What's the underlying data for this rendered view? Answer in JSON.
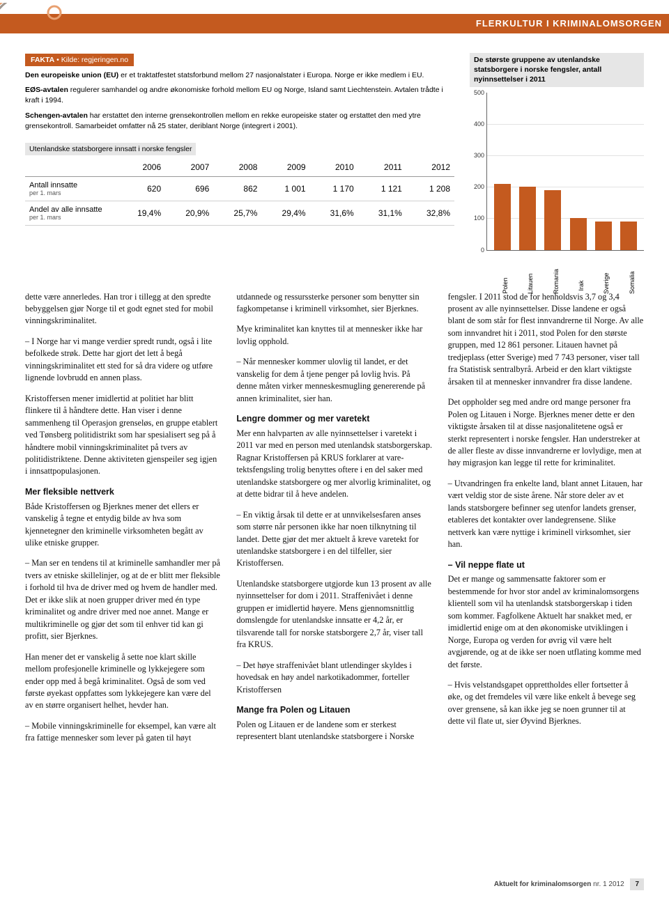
{
  "header": {
    "banner": "FLERKULTUR I KRIMINALOMSORGEN",
    "banner_bg": "#c45a1f",
    "banner_text_color": "#ffffff"
  },
  "fakta": {
    "tag_prefix": "FAKTA",
    "tag_bullet": "•",
    "tag_source": "Kilde: regjeringen.no",
    "para1_lead": "Den europeiske union (EU)",
    "para1_rest": " er et traktatfestet statsforbund mellom 27 nasjonalstater i Europa. Norge er ikke medlem i EU.",
    "para2_lead": "EØS-avtalen",
    "para2_rest": " regulerer samhandel og andre økonomiske forhold mellom EU og Norge, Island samt Liechtenstein. Avtalen trådte i kraft i 1994.",
    "para3_lead": "Schengen-avtalen",
    "para3_rest": " har erstattet den interne grensekontrollen mellom en rekke europeiske stater og erstattet den med ytre grensekontroll. Samarbeidet omfatter nå 25 stater, deriblant Norge (integrert i 2001)."
  },
  "table": {
    "title": "Utenlandske statsborgere innsatt i norske fengsler",
    "years": [
      "2006",
      "2007",
      "2008",
      "2009",
      "2010",
      "2011",
      "2012"
    ],
    "row1_label": "Antall innsatte",
    "row1_sub": "per 1. mars",
    "row1_values": [
      "620",
      "696",
      "862",
      "1 001",
      "1 170",
      "1 121",
      "1 208"
    ],
    "row2_label": "Andel av alle innsatte",
    "row2_sub": "per 1. mars",
    "row2_values": [
      "19,4%",
      "20,9%",
      "25,7%",
      "29,4%",
      "31,6%",
      "31,1%",
      "32,8%"
    ]
  },
  "chart": {
    "title": "De største gruppene av utenlandske statsborgere i norske fengsler, antall nyinnsettelser i 2011",
    "type": "bar",
    "categories": [
      "Polen",
      "Litauen",
      "Romania",
      "Irak",
      "Sverige",
      "Somalia"
    ],
    "values": [
      210,
      200,
      190,
      100,
      90,
      90
    ],
    "ymax": 500,
    "ytick_step": 100,
    "yticks": [
      0,
      100,
      200,
      300,
      400,
      500
    ],
    "bar_color": "#c45a1f",
    "grid_color": "#e2e2e2",
    "axis_color": "#666666",
    "label_fontsize": 9
  },
  "article": {
    "p1": "dette være annerledes. Han tror i tillegg at den spredte bebyggelsen gjør Norge til et godt egnet sted for mobil vinnings­kriminalitet.",
    "p2": "– I Norge har vi mange verdier spredt rundt, også i lite befolkede strøk. Dette har gjort det lett å begå vinningskriminal­itet ett sted for så dra videre og utføre lignende lovbrudd en annen plass.",
    "p3": "Kristoffersen mener imidlertid at politiet har blitt flinkere til å håndtere dette. Han viser i denne sammenheng til Operasjon grenseløs, en gruppe etablert ved Tønsberg politidistrikt som har spesialisert seg på å håndtere mobil vinningskriminalitet på tvers av politidistriktene. Denne aktiviteten gjenspeiler seg igjen i innsattpopulasjonen.",
    "h1": "Mer fleksible nettverk",
    "p4": "Både Kristoffersen og Bjerknes mener det ellers er vanskelig å tegne et entydig bilde av hva som kjennetegner den kriminelle virksomheten begått av ulike etniske grupper.",
    "p5": "– Man ser en tendens til at kriminelle samhandler mer på tvers av etniske skil­lelinjer, og at de er blitt mer fleksible i forhold til hva de driver med og hvem de handler med.  Det er ikke slik at noen grupper driver med én type kriminalitet og andre driver med noe annet. Mange er multikriminelle og gjør det som til enhver tid kan gi profitt, sier Bjerknes.",
    "p6": "Han mener det er vanskelig å sette noe klart skille mellom profesjonelle kriminelle og lykkejegere som ender opp med å begå kriminalitet. Også de som ved første øyekast oppfattes som lykkejegere kan være del av en større organisert helhet, hevder han.",
    "p7": "– Mobile vinningskriminelle for eksempel, kan være alt fra fattige mennesker som lever på gaten til høyt utdannede og ressurssterke personer som benytter sin fagkompetanse i kriminell virksomhet, sier Bjerknes.",
    "p8": "Mye kriminalitet kan knyttes til at mennesker ikke har lovlig opphold.",
    "p9": "– Når mennesker kommer ulovlig til landet, er det vanskelig for dem å tjene penger på lovlig hvis. På denne måten virker menneskesmugling genererende på annen kriminalitet, sier han.",
    "h2": "Lengre dommer og mer varetekt",
    "p10": "Mer enn halvparten av alle nyinnsettelser i varetekt i 2011 var med en person med utenlandsk statsborgerskap. Ragnar Kristoffersen på KRUS forklarer at vare­tektsfengsling trolig benyttes oftere i en del saker med utenlandske statsborgere og mer alvorlig kriminalitet, og at dette bidrar til å heve andelen.",
    "p11": "– En viktig årsak til dette er at unnvikelsesfaren anses som større når personen ikke har noen tilknytning til landet. Dette gjør det mer aktuelt å kreve varetekt for utenlandske statsborgere i en del tilfeller, sier Kristoffersen.",
    "p12": "Utenlandske statsborgere utgjorde kun 13 prosent av alle nyinnsettelser for dom i 2011. Straffenivået i denne gruppen er imidlertid høyere. Mens gjennomsnittlig domslengde for utenlandske innsatte er 4,2 år, er tilsvarende tall for norske statsborgere 2,7 år, viser tall fra KRUS.",
    "p13": "– Det høye straffenivået blant utlendinger skyldes i hovedsak en høy andel narkotika­dommer, forteller Kristoffersen",
    "h3": "Mange fra Polen og Litauen",
    "p14": "Polen og Litauen er de landene som er sterkest representert blant utenlandske statsborgere i Norske fengsler. I 2011 stod de for henholdsvis 3,7 og 3,4 prosent av alle nyinnsettelser. Disse landene er også blant de som står for flest innvandrerne til Norge. Av alle som innvandret hit i 2011, stod Polen for den største gruppen, med 12 861 personer. Litauen havnet på tredjeplass (etter Sverige) med 7 743 per­soner, viser tall fra Statistisk sentralbyrå. Arbeid er den klart viktigste årsaken til at mennesker innvandrer fra disse landene.",
    "p15": "Det oppholder seg med andre ord mange personer fra Polen og Litauen i Norge. Bjerknes mener dette er den viktigste årsaken til at disse nasjonalitetene også er sterkt representert i norske fengsler. Han understreker at de aller fleste av disse innvandrerne er lovlydige, men at høy migrasjon kan legge til rette for kriminalitet.",
    "p16": "– Utvandringen fra enkelte land, blant annet Litauen, har vært veldig stor de siste årene. Når store deler av et lands statsborgere befinner seg utenfor landets grenser, etableres det kontakter over landegrensene. Slike nettverk kan være nyttige i kriminell virksomhet, sier han.",
    "h4": "– Vil neppe flate ut",
    "p17": "Det er mange og sammensatte faktorer som er bestemmende for hvor stor andel av kriminalomsorgens klientell som vil ha utenlandsk statsborgerskap i tiden som kommer.  Fagfolkene Aktuelt har snakket med, er imidlertid enige om at den økonomiske utviklingen i Norge, Europa og verden for øvrig vil være helt avgjørende, og at de ikke ser noen utflating komme med det første.",
    "p18": "– Hvis velstandsgapet opprettholdes eller fortsetter å øke, og det fremdeles vil være like enkelt å bevege seg over grensene, så kan ikke jeg se noen grunner til at dette vil flate ut, sier Øyvind Bjerknes."
  },
  "footer": {
    "journal_prefix": "Aktuelt for kriminalomsorgen",
    "issue": " nr. 1 2012",
    "page": "7"
  }
}
